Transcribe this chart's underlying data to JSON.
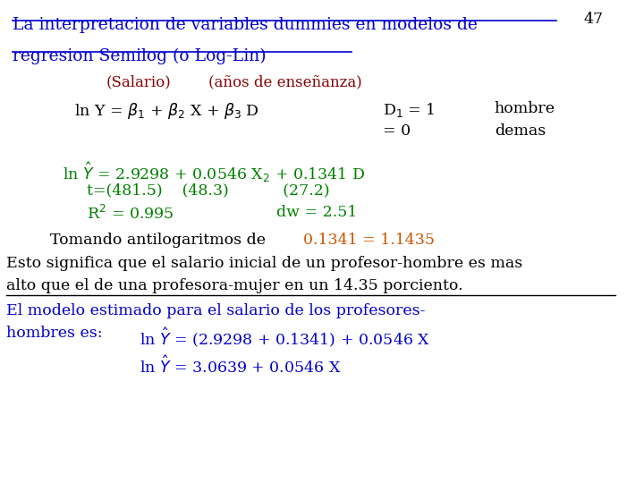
{
  "title_line1": "La interpretacion de variables dummies en modelos de",
  "title_line2": "regresion Semilog (o Log-Lin)",
  "page_number": "47",
  "subtitle_salario": "(Salario)",
  "subtitle_anios": "(años de enseñanza)",
  "green_color": "#008000",
  "orange_color": "#CC5500",
  "blue_color": "#0000CD",
  "darkred_color": "#8B0000",
  "black_color": "#000000",
  "bg_color": "#FFFFFF",
  "fs_title": 13.5,
  "fs_body": 12.5,
  "fs_small": 12.0
}
